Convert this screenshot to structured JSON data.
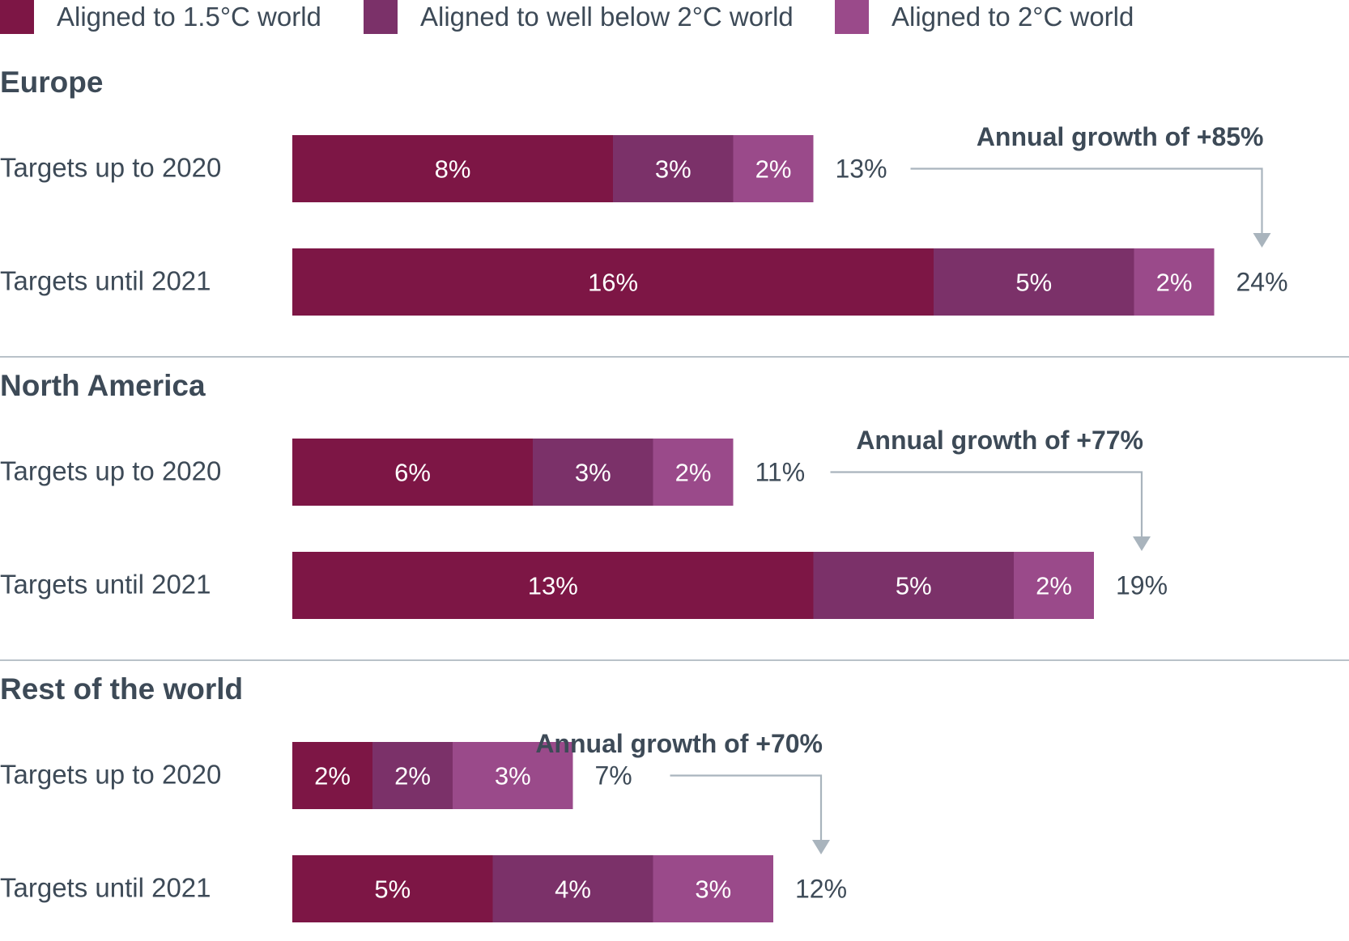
{
  "chart_data": {
    "type": "bar",
    "orientation": "horizontal",
    "stacked": true,
    "legend_position": "top",
    "grid": false,
    "xlim": [
      0,
      24
    ],
    "legend": [
      {
        "key": "s15",
        "label": "Aligned to 1.5°C world",
        "color": "#7d1645"
      },
      {
        "key": "wb2",
        "label": "Aligned to well below 2°C world",
        "color": "#7b3169"
      },
      {
        "key": "two",
        "label": "Aligned to 2°C world",
        "color": "#9a4a8a"
      }
    ],
    "groups": [
      {
        "name": "Europe",
        "growth_label": "Annual growth of +85%",
        "bars": [
          {
            "label": "Targets up to 2020",
            "values": [
              8,
              3,
              2
            ],
            "value_labels": [
              "8%",
              "3%",
              "2%"
            ],
            "total_label": "13%"
          },
          {
            "label": "Targets until 2021",
            "values": [
              16,
              5,
              2
            ],
            "value_labels": [
              "16%",
              "5%",
              "2%"
            ],
            "total_label": "24%"
          }
        ]
      },
      {
        "name": "North America",
        "growth_label": "Annual growth of +77%",
        "bars": [
          {
            "label": "Targets up to 2020",
            "values": [
              6,
              3,
              2
            ],
            "value_labels": [
              "6%",
              "3%",
              "2%"
            ],
            "total_label": "11%"
          },
          {
            "label": "Targets until 2021",
            "values": [
              13,
              5,
              2
            ],
            "value_labels": [
              "13%",
              "5%",
              "2%"
            ],
            "total_label": "19%"
          }
        ]
      },
      {
        "name": "Rest of the world",
        "growth_label": "Annual growth of +70%",
        "bars": [
          {
            "label": "Targets up to 2020",
            "values": [
              2,
              2,
              3
            ],
            "value_labels": [
              "2%",
              "2%",
              "3%"
            ],
            "total_label": "7%"
          },
          {
            "label": "Targets until 2021",
            "values": [
              5,
              4,
              3
            ],
            "value_labels": [
              "5%",
              "4%",
              "3%"
            ],
            "total_label": "12%"
          }
        ]
      }
    ]
  }
}
